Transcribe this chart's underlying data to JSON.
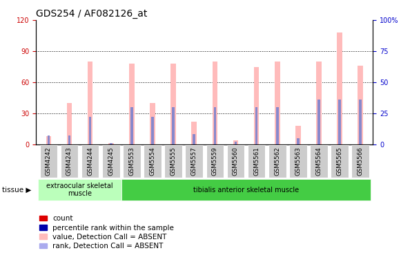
{
  "title": "GDS254 / AF082126_at",
  "samples": [
    "GSM4242",
    "GSM4243",
    "GSM4244",
    "GSM4245",
    "GSM5553",
    "GSM5554",
    "GSM5555",
    "GSM5557",
    "GSM5559",
    "GSM5560",
    "GSM5561",
    "GSM5562",
    "GSM5563",
    "GSM5564",
    "GSM5565",
    "GSM5566"
  ],
  "pink_values": [
    8,
    40,
    80,
    1,
    78,
    40,
    78,
    22,
    80,
    4,
    75,
    80,
    18,
    80,
    108,
    76
  ],
  "blue_ranks": [
    7,
    7,
    22,
    1,
    30,
    22,
    30,
    8,
    30,
    2,
    30,
    30,
    5,
    36,
    36,
    36
  ],
  "tissue_groups": [
    {
      "label": "extraocular skeletal\nmuscle",
      "start": 0,
      "end": 4,
      "color": "#bbffbb"
    },
    {
      "label": "tibialis anterior skeletal muscle",
      "start": 4,
      "end": 16,
      "color": "#44cc44"
    }
  ],
  "ylim_left": [
    0,
    120
  ],
  "ylim_right": [
    0,
    100
  ],
  "yticks_left": [
    0,
    30,
    60,
    90,
    120
  ],
  "ytick_labels_left": [
    "0",
    "30",
    "60",
    "90",
    "120"
  ],
  "yticks_right": [
    0,
    25,
    50,
    75,
    100
  ],
  "ytick_labels_right": [
    "0",
    "25",
    "50",
    "75",
    "100%"
  ],
  "pink_color": "#ffbbbb",
  "blue_color": "#8888cc",
  "left_tick_color": "#cc0000",
  "right_tick_color": "#0000cc",
  "title_fontsize": 10,
  "tick_fontsize": 7,
  "legend_fontsize": 7.5
}
